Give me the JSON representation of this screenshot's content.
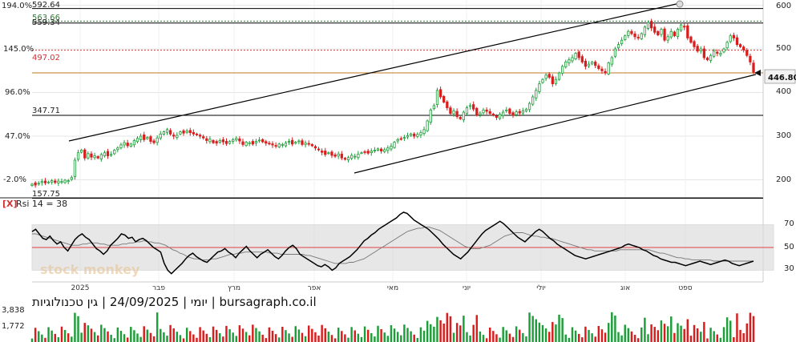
{
  "header": {
    "caption": "יומי | 24/09/2025 | גין טכנולוגיות | bursagraph.co.il",
    "watermark": "stock monkey"
  },
  "rsi_panel": {
    "close_label": "[X]",
    "title": "Rsi 14 = 38",
    "value": 38,
    "period": 14,
    "levels": [
      "70",
      "50",
      "30"
    ]
  },
  "price_axis": {
    "right_ticks": [
      "600",
      "500",
      "400",
      "300",
      "200"
    ],
    "pct_ticks": [
      "194.0%",
      "145.0%",
      "96.0%",
      "47.0%",
      "-2.0%"
    ],
    "current_price": "446.80"
  },
  "price_levels": [
    {
      "label": "592.64",
      "value": 592.64,
      "color": "#000000"
    },
    {
      "label": "563.66",
      "value": 563.66,
      "color": "#2e7d32"
    },
    {
      "label": "559.34",
      "value": 559.34,
      "color": "#000000"
    },
    {
      "label": "497.02",
      "value": 497.02,
      "color": "#d32f2f"
    },
    {
      "label": "347.71",
      "value": 347.71,
      "color": "#000000"
    },
    {
      "label": "157.75",
      "value": 157.75,
      "color": "#000000"
    }
  ],
  "volume_axis": {
    "ticks": [
      "3,838",
      "1,772"
    ]
  },
  "months": [
    "2025",
    "פבר",
    "מרץ",
    "אפר",
    "מאי",
    "יוני",
    "יולי",
    "אוג",
    "ספט"
  ],
  "colors": {
    "up": "#1e9e3a",
    "down": "#d91c1c",
    "grid": "#e6e6e6",
    "band": "#dddddd"
  },
  "chart_data": {
    "type": "candlestick",
    "series_note": "daily",
    "ylim": [
      157.75,
      600
    ],
    "closes": [
      190,
      188,
      192,
      196,
      193,
      195,
      198,
      194,
      197,
      196,
      199,
      198,
      205,
      245,
      262,
      268,
      250,
      260,
      252,
      255,
      250,
      258,
      262,
      255,
      258,
      268,
      273,
      280,
      285,
      278,
      282,
      290,
      295,
      300,
      292,
      297,
      288,
      285,
      296,
      305,
      310,
      315,
      305,
      300,
      302,
      310,
      307,
      312,
      308,
      305,
      303,
      300,
      296,
      290,
      293,
      285,
      284,
      290,
      287,
      283,
      288,
      292,
      295,
      289,
      281,
      286,
      285,
      282,
      288,
      291,
      287,
      284,
      283,
      280,
      277,
      282,
      281,
      284,
      288,
      282,
      286,
      289,
      281,
      284,
      282,
      278,
      273,
      269,
      263,
      258,
      262,
      256,
      254,
      259,
      250,
      247,
      251,
      256,
      254,
      259,
      262,
      264,
      261,
      266,
      268,
      271,
      266,
      269,
      273,
      277,
      286,
      292,
      294,
      297,
      301,
      305,
      300,
      304,
      308,
      315,
      335,
      360,
      370,
      405,
      390,
      378,
      365,
      352,
      358,
      345,
      340,
      355,
      365,
      370,
      362,
      348,
      353,
      360,
      357,
      352,
      348,
      343,
      350,
      355,
      360,
      352,
      348,
      356,
      353,
      358,
      362,
      375,
      390,
      405,
      420,
      430,
      440,
      435,
      420,
      430,
      445,
      460,
      470,
      475,
      480,
      490,
      480,
      470,
      460,
      465,
      470,
      462,
      455,
      450,
      445,
      468,
      480,
      500,
      510,
      520,
      530,
      540,
      535,
      528,
      525,
      535,
      550,
      560,
      548,
      538,
      532,
      545,
      520,
      528,
      540,
      530,
      545,
      555,
      550,
      525,
      515,
      505,
      495,
      500,
      480,
      475,
      485,
      495,
      490,
      490,
      500,
      515,
      530,
      525,
      510,
      505,
      498,
      485,
      470,
      446.8
    ]
  },
  "rsi_data": {
    "rsi": [
      64,
      66,
      62,
      58,
      57,
      60,
      56,
      53,
      55,
      50,
      47,
      52,
      57,
      60,
      62,
      59,
      57,
      53,
      49,
      47,
      44,
      47,
      52,
      55,
      58,
      62,
      61,
      58,
      59,
      55,
      57,
      58,
      56,
      53,
      50,
      48,
      46,
      36,
      30,
      27,
      30,
      33,
      36,
      40,
      43,
      45,
      42,
      40,
      38,
      37,
      40,
      43,
      46,
      47,
      49,
      46,
      44,
      41,
      45,
      48,
      51,
      47,
      44,
      41,
      44,
      46,
      48,
      45,
      42,
      40,
      43,
      47,
      50,
      52,
      49,
      44,
      42,
      40,
      38,
      36,
      34,
      33,
      35,
      33,
      30,
      32,
      36,
      38,
      40,
      42,
      45,
      48,
      52,
      56,
      58,
      61,
      63,
      66,
      68,
      70,
      72,
      74,
      76,
      79,
      81,
      80,
      77,
      74,
      72,
      70,
      68,
      66,
      63,
      60,
      57,
      53,
      50,
      47,
      44,
      42,
      40,
      43,
      46,
      50,
      54,
      58,
      62,
      65,
      67,
      69,
      71,
      73,
      71,
      68,
      65,
      62,
      59,
      57,
      55,
      58,
      61,
      64,
      66,
      64,
      61,
      58,
      56,
      53,
      51,
      49,
      47,
      45,
      43,
      42,
      41,
      40,
      41,
      42,
      43,
      44,
      45,
      46,
      47,
      48,
      49,
      50,
      52,
      53,
      52,
      51,
      50,
      48,
      47,
      45,
      43,
      42,
      40,
      39,
      38,
      37,
      37,
      36,
      35,
      34,
      35,
      36,
      37,
      38,
      37,
      36,
      35,
      36,
      37,
      38,
      39,
      38,
      36,
      35,
      34,
      35,
      36,
      37,
      38
    ],
    "ma": [
      62,
      62,
      61,
      60,
      59,
      58,
      57,
      56,
      55,
      54,
      53,
      52,
      52,
      52,
      53,
      53,
      54,
      54,
      54,
      53,
      53,
      52,
      52,
      52,
      52,
      53,
      53,
      54,
      54,
      55,
      55,
      56,
      55,
      55,
      54,
      54,
      53,
      52,
      50,
      48,
      47,
      45,
      44,
      42,
      41,
      40,
      40,
      39,
      39,
      39,
      40,
      40,
      41,
      42,
      43,
      44,
      44,
      45,
      45,
      46,
      46,
      46,
      46,
      46,
      46,
      46,
      45,
      45,
      45,
      44,
      44,
      44,
      44,
      44,
      44,
      44,
      43,
      43,
      42,
      41,
      40,
      39,
      38,
      37,
      36,
      36,
      36,
      36,
      37,
      37,
      38,
      39,
      40,
      42,
      44,
      46,
      48,
      50,
      52,
      54,
      56,
      58,
      60,
      62,
      64,
      65,
      66,
      67,
      67,
      68,
      68,
      67,
      66,
      65,
      63,
      61,
      59,
      57,
      55,
      53,
      51,
      50,
      49,
      49,
      49,
      50,
      51,
      52,
      54,
      56,
      58,
      60,
      61,
      62,
      63,
      63,
      63,
      62,
      61,
      60,
      60,
      59,
      59,
      58,
      58,
      57,
      56,
      55,
      54,
      53,
      52,
      51,
      50,
      49,
      48,
      48,
      47,
      47,
      47,
      47,
      47,
      47,
      47,
      48,
      48,
      48,
      48,
      48,
      48,
      48,
      48,
      48,
      47,
      46,
      45,
      45,
      44,
      43,
      42,
      41,
      41,
      40,
      40,
      39,
      39,
      39,
      39,
      39,
      39,
      38,
      38,
      38,
      38,
      38,
      38,
      38,
      38,
      38,
      38,
      38,
      38
    ]
  }
}
